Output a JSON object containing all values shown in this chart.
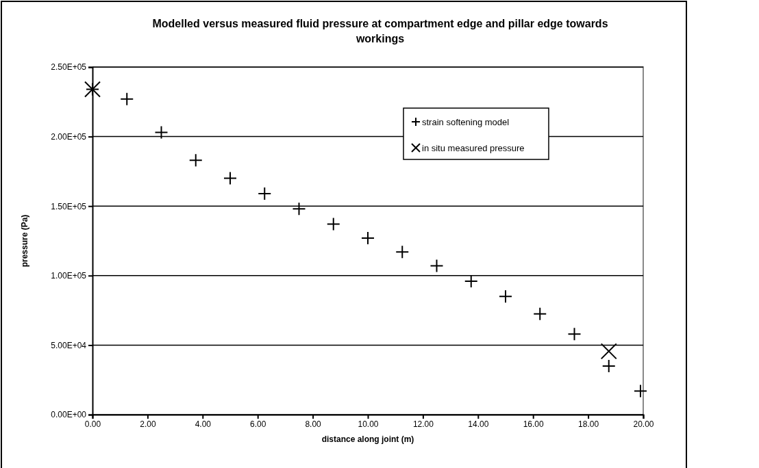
{
  "chart_data": {
    "type": "scatter",
    "title": "Modelled versus measured fluid pressure at compartment edge and pillar edge towards workings",
    "xlabel": "distance along joint (m)",
    "ylabel": "pressure (Pa)",
    "series": [
      {
        "name": "strain softening model",
        "color": "#000000",
        "marker": "cross",
        "x": [
          0,
          1.25,
          2.5,
          3.75,
          5,
          6.25,
          7.5,
          8.75,
          10,
          11.25,
          12.5,
          13.75,
          15,
          16.25,
          17.5,
          18.75,
          19.9
        ],
        "values": [
          234000,
          227000,
          203000,
          183000,
          170000,
          159000,
          148000,
          137000,
          127000,
          117000,
          107000,
          96000,
          85000,
          72500,
          58000,
          35000,
          17000
        ]
      },
      {
        "name": "in situ measured pressure",
        "color": "#000000",
        "marker": "x",
        "x": [
          0,
          18.75
        ],
        "values": [
          234000,
          45600
        ]
      }
    ],
    "xlim": [
      0,
      20
    ],
    "xticks": [
      {
        "value": 0,
        "label": "0.00"
      },
      {
        "value": 2,
        "label": "2.00"
      },
      {
        "value": 4,
        "label": "4.00"
      },
      {
        "value": 6,
        "label": "6.00"
      },
      {
        "value": 8,
        "label": "8.00"
      },
      {
        "value": 10,
        "label": "10.00"
      },
      {
        "value": 12,
        "label": "12.00"
      },
      {
        "value": 14,
        "label": "14.00"
      },
      {
        "value": 16,
        "label": "16.00"
      },
      {
        "value": 18,
        "label": "18.00"
      },
      {
        "value": 20,
        "label": "20.00"
      }
    ],
    "ylim": [
      0,
      250000
    ],
    "yticks": [
      {
        "value": 0,
        "label": "0.00E+00"
      },
      {
        "value": 50000,
        "label": "5.00E+04"
      },
      {
        "value": 100000,
        "label": "1.00E+05"
      },
      {
        "value": 150000,
        "label": "1.50E+05"
      },
      {
        "value": 200000,
        "label": "2.00E+05"
      },
      {
        "value": 250000,
        "label": "2.50E+05"
      }
    ],
    "grid": "y",
    "legend": "top right"
  }
}
